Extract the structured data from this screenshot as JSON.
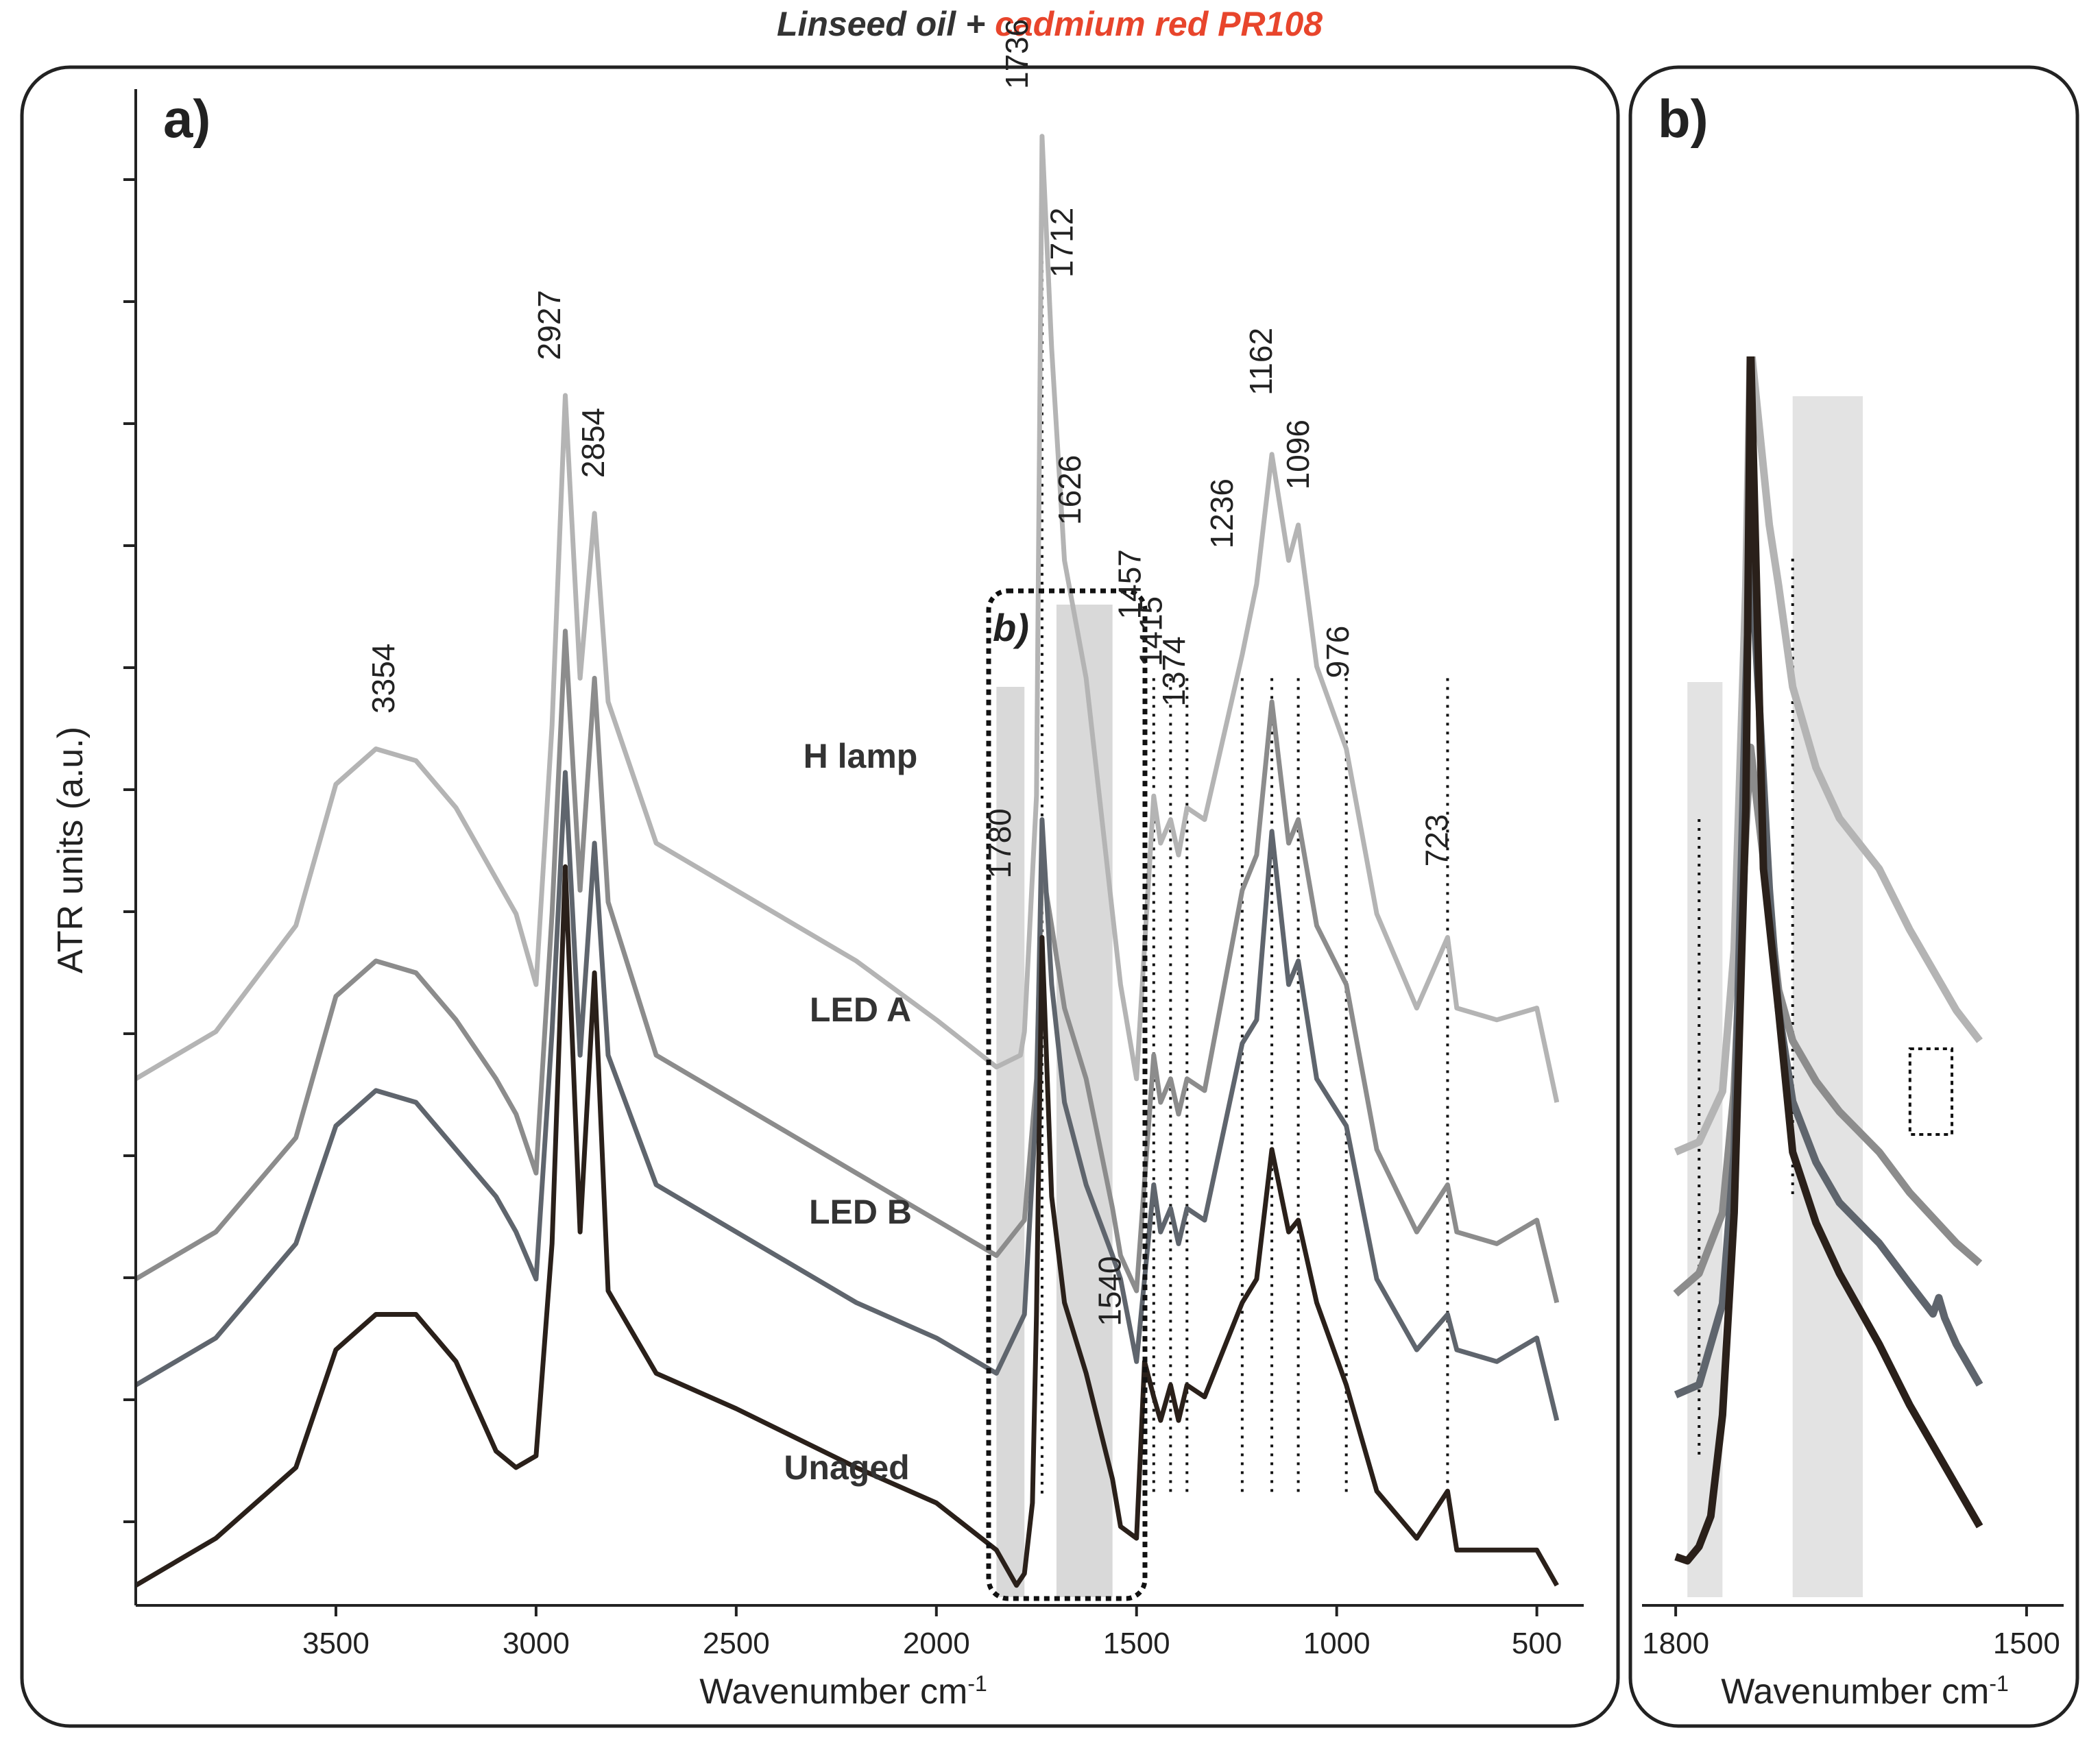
{
  "title": {
    "part1": "Linseed oil + ",
    "part2": "cadmium red PR108",
    "part1_color": "#333333",
    "part2_color": "#e8452c"
  },
  "chart_data": [
    {
      "type": "line",
      "panel": "a)",
      "xlabel": "Wavenumber cm",
      "xlabel_superscript": "-1",
      "ylabel": "ATR units (a.u.)",
      "xlim": [
        4000,
        400
      ],
      "x_reversed": true,
      "xticks": [
        3500,
        3000,
        2500,
        2000,
        1500,
        1000,
        500
      ],
      "series": [
        {
          "name": "H lamp",
          "color": "#b4b4b4",
          "x": [
            4000,
            3800,
            3600,
            3500,
            3400,
            3300,
            3200,
            3100,
            3050,
            3000,
            2960,
            2927,
            2890,
            2854,
            2820,
            2700,
            2500,
            2200,
            2000,
            1850,
            1790,
            1780,
            1750,
            1736,
            1712,
            1680,
            1626,
            1560,
            1540,
            1500,
            1457,
            1440,
            1415,
            1395,
            1374,
            1330,
            1236,
            1200,
            1162,
            1120,
            1096,
            1050,
            976,
            900,
            800,
            723,
            700,
            600,
            500,
            450
          ],
          "y": [
            2.2,
            2.4,
            2.85,
            3.45,
            3.6,
            3.55,
            3.35,
            3.05,
            2.9,
            2.6,
            3.7,
            5.1,
            3.9,
            4.6,
            3.8,
            3.2,
            3.0,
            2.7,
            2.45,
            2.25,
            2.3,
            2.4,
            3.4,
            6.2,
            5.3,
            4.4,
            3.9,
            2.9,
            2.6,
            2.2,
            3.4,
            3.2,
            3.3,
            3.15,
            3.35,
            3.3,
            4.0,
            4.3,
            4.85,
            4.4,
            4.55,
            3.95,
            3.6,
            2.9,
            2.5,
            2.8,
            2.5,
            2.45,
            2.5,
            2.1
          ]
        },
        {
          "name": "LED A",
          "color": "#8c8c8c",
          "x": [
            4000,
            3800,
            3600,
            3500,
            3400,
            3300,
            3200,
            3100,
            3050,
            3000,
            2960,
            2927,
            2890,
            2854,
            2820,
            2700,
            2500,
            2200,
            2000,
            1850,
            1780,
            1750,
            1736,
            1712,
            1680,
            1626,
            1560,
            1540,
            1500,
            1457,
            1440,
            1415,
            1395,
            1374,
            1330,
            1236,
            1200,
            1162,
            1120,
            1096,
            1050,
            976,
            900,
            800,
            723,
            700,
            600,
            500,
            450
          ],
          "y": [
            1.35,
            1.55,
            1.95,
            2.55,
            2.7,
            2.65,
            2.45,
            2.2,
            2.05,
            1.8,
            2.9,
            4.1,
            3.0,
            3.9,
            2.95,
            2.3,
            2.1,
            1.8,
            1.6,
            1.45,
            1.6,
            2.2,
            3.1,
            2.85,
            2.5,
            2.2,
            1.65,
            1.45,
            1.3,
            2.3,
            2.1,
            2.2,
            2.05,
            2.2,
            2.15,
            3.0,
            3.15,
            3.8,
            3.2,
            3.3,
            2.85,
            2.6,
            1.9,
            1.55,
            1.75,
            1.55,
            1.5,
            1.6,
            1.25
          ]
        },
        {
          "name": "LED B",
          "color": "#5f656d",
          "x": [
            4000,
            3800,
            3600,
            3500,
            3400,
            3300,
            3200,
            3100,
            3050,
            3000,
            2960,
            2927,
            2890,
            2854,
            2820,
            2700,
            2500,
            2200,
            2000,
            1850,
            1780,
            1750,
            1736,
            1712,
            1680,
            1626,
            1560,
            1540,
            1500,
            1457,
            1440,
            1415,
            1395,
            1374,
            1330,
            1236,
            1200,
            1162,
            1120,
            1096,
            1050,
            976,
            900,
            800,
            723,
            700,
            600,
            500,
            450
          ],
          "y": [
            0.9,
            1.1,
            1.5,
            2.0,
            2.15,
            2.1,
            1.9,
            1.7,
            1.55,
            1.35,
            2.4,
            3.5,
            2.3,
            3.2,
            2.3,
            1.75,
            1.55,
            1.25,
            1.1,
            0.95,
            1.2,
            2.1,
            3.3,
            2.6,
            2.1,
            1.75,
            1.45,
            1.35,
            1.0,
            1.75,
            1.55,
            1.65,
            1.5,
            1.65,
            1.6,
            2.35,
            2.45,
            3.25,
            2.6,
            2.7,
            2.2,
            2.0,
            1.35,
            1.05,
            1.2,
            1.05,
            1.0,
            1.1,
            0.75
          ]
        },
        {
          "name": "Unaged",
          "color": "#2a201a",
          "x": [
            4000,
            3800,
            3600,
            3500,
            3400,
            3300,
            3200,
            3100,
            3050,
            3000,
            2960,
            2927,
            2890,
            2854,
            2820,
            2700,
            2500,
            2200,
            2000,
            1850,
            1800,
            1780,
            1760,
            1750,
            1736,
            1712,
            1680,
            1626,
            1560,
            1540,
            1500,
            1480,
            1457,
            1440,
            1415,
            1395,
            1374,
            1330,
            1236,
            1200,
            1162,
            1120,
            1096,
            1050,
            976,
            900,
            800,
            723,
            700,
            600,
            500,
            450
          ],
          "y": [
            0.05,
            0.25,
            0.55,
            1.05,
            1.2,
            1.2,
            1.0,
            0.62,
            0.55,
            0.6,
            1.5,
            3.1,
            1.55,
            2.65,
            1.3,
            0.95,
            0.8,
            0.55,
            0.4,
            0.2,
            0.05,
            0.1,
            0.4,
            1.2,
            2.8,
            1.7,
            1.25,
            0.95,
            0.5,
            0.3,
            0.25,
            1.0,
            0.85,
            0.75,
            0.9,
            0.75,
            0.9,
            0.85,
            1.25,
            1.35,
            1.9,
            1.55,
            1.6,
            1.25,
            0.9,
            0.45,
            0.25,
            0.45,
            0.2,
            0.2,
            0.2,
            0.05
          ]
        }
      ],
      "peak_labels": [
        {
          "text": "3354",
          "x": 3354,
          "y": 3.75
        },
        {
          "text": "2927",
          "x": 2940,
          "y": 5.25
        },
        {
          "text": "2854",
          "x": 2830,
          "y": 4.75
        },
        {
          "text": "1736",
          "x": 1772,
          "y": 6.4
        },
        {
          "text": "1712",
          "x": 1660,
          "y": 5.6
        },
        {
          "text": "1780",
          "x": 1815,
          "y": 3.05
        },
        {
          "text": "1626",
          "x": 1640,
          "y": 4.55
        },
        {
          "text": "1457",
          "x": 1490,
          "y": 4.15
        },
        {
          "text": "1415",
          "x": 1437,
          "y": 3.95
        },
        {
          "text": "1374",
          "x": 1380,
          "y": 3.78
        },
        {
          "text": "1236",
          "x": 1260,
          "y": 4.45
        },
        {
          "text": "1162",
          "x": 1162,
          "y": 5.1
        },
        {
          "text": "1096",
          "x": 1070,
          "y": 4.7
        },
        {
          "text": "976",
          "x": 970,
          "y": 3.9
        },
        {
          "text": "723",
          "x": 723,
          "y": 3.1
        },
        {
          "text": "1540",
          "x": 1540,
          "y": 1.15
        }
      ],
      "trace_labels": [
        "H lamp",
        "LED A",
        "LED B",
        "Unaged"
      ],
      "inset_box_label": "b)",
      "inset_region": [
        1870,
        1510
      ],
      "shaded_bands": [
        [
          1850,
          1780
        ],
        [
          1700,
          1560
        ]
      ],
      "dotted_markers": [
        1736,
        1457,
        1415,
        1374,
        1236,
        1162,
        1096,
        976,
        723
      ]
    },
    {
      "type": "line",
      "panel": "b)",
      "xlabel": "Wavenumber cm",
      "xlabel_superscript": "-1",
      "xlim": [
        1820,
        1480
      ],
      "x_reversed": true,
      "xticks": [
        1800,
        1500
      ],
      "series": [
        {
          "name": "H lamp",
          "color": "#b4b4b4",
          "x": [
            1800,
            1780,
            1760,
            1750,
            1740,
            1736,
            1720,
            1712,
            1700,
            1680,
            1660,
            1626,
            1600,
            1560,
            1540
          ],
          "y": [
            2.2,
            2.25,
            2.5,
            3.2,
            5.0,
            6.2,
            5.3,
            5.0,
            4.5,
            4.1,
            3.85,
            3.6,
            3.3,
            2.9,
            2.75
          ]
        },
        {
          "name": "LED A",
          "color": "#8c8c8c",
          "x": [
            1800,
            1780,
            1760,
            1750,
            1740,
            1736,
            1720,
            1712,
            1700,
            1680,
            1660,
            1626,
            1600,
            1560,
            1540
          ],
          "y": [
            1.5,
            1.6,
            1.9,
            2.5,
            3.8,
            4.2,
            3.4,
            3.0,
            2.75,
            2.55,
            2.4,
            2.2,
            2.0,
            1.75,
            1.65
          ]
        },
        {
          "name": "LED B",
          "color": "#5f656d",
          "x": [
            1800,
            1780,
            1760,
            1750,
            1740,
            1736,
            1720,
            1712,
            1700,
            1680,
            1660,
            1626,
            1600,
            1580,
            1575,
            1570,
            1560,
            1540
          ],
          "y": [
            1.0,
            1.05,
            1.45,
            2.2,
            4.5,
            5.2,
            3.5,
            2.9,
            2.45,
            2.15,
            1.95,
            1.75,
            1.55,
            1.4,
            1.48,
            1.38,
            1.25,
            1.05
          ]
        },
        {
          "name": "Unaged",
          "color": "#2a201a",
          "x": [
            1800,
            1790,
            1780,
            1770,
            1760,
            1750,
            1740,
            1736,
            1725,
            1712,
            1700,
            1680,
            1660,
            1626,
            1600,
            1560,
            1540
          ],
          "y": [
            0.2,
            0.18,
            0.25,
            0.4,
            0.9,
            1.9,
            3.9,
            6.2,
            3.6,
            2.9,
            2.2,
            1.85,
            1.6,
            1.25,
            0.95,
            0.55,
            0.35
          ]
        }
      ],
      "shaded_bands": [
        [
          1790,
          1760
        ],
        [
          1700,
          1640
        ]
      ],
      "dotted_markers": [
        1780,
        1700
      ],
      "highlight_box": [
        1595,
        1572
      ]
    }
  ]
}
